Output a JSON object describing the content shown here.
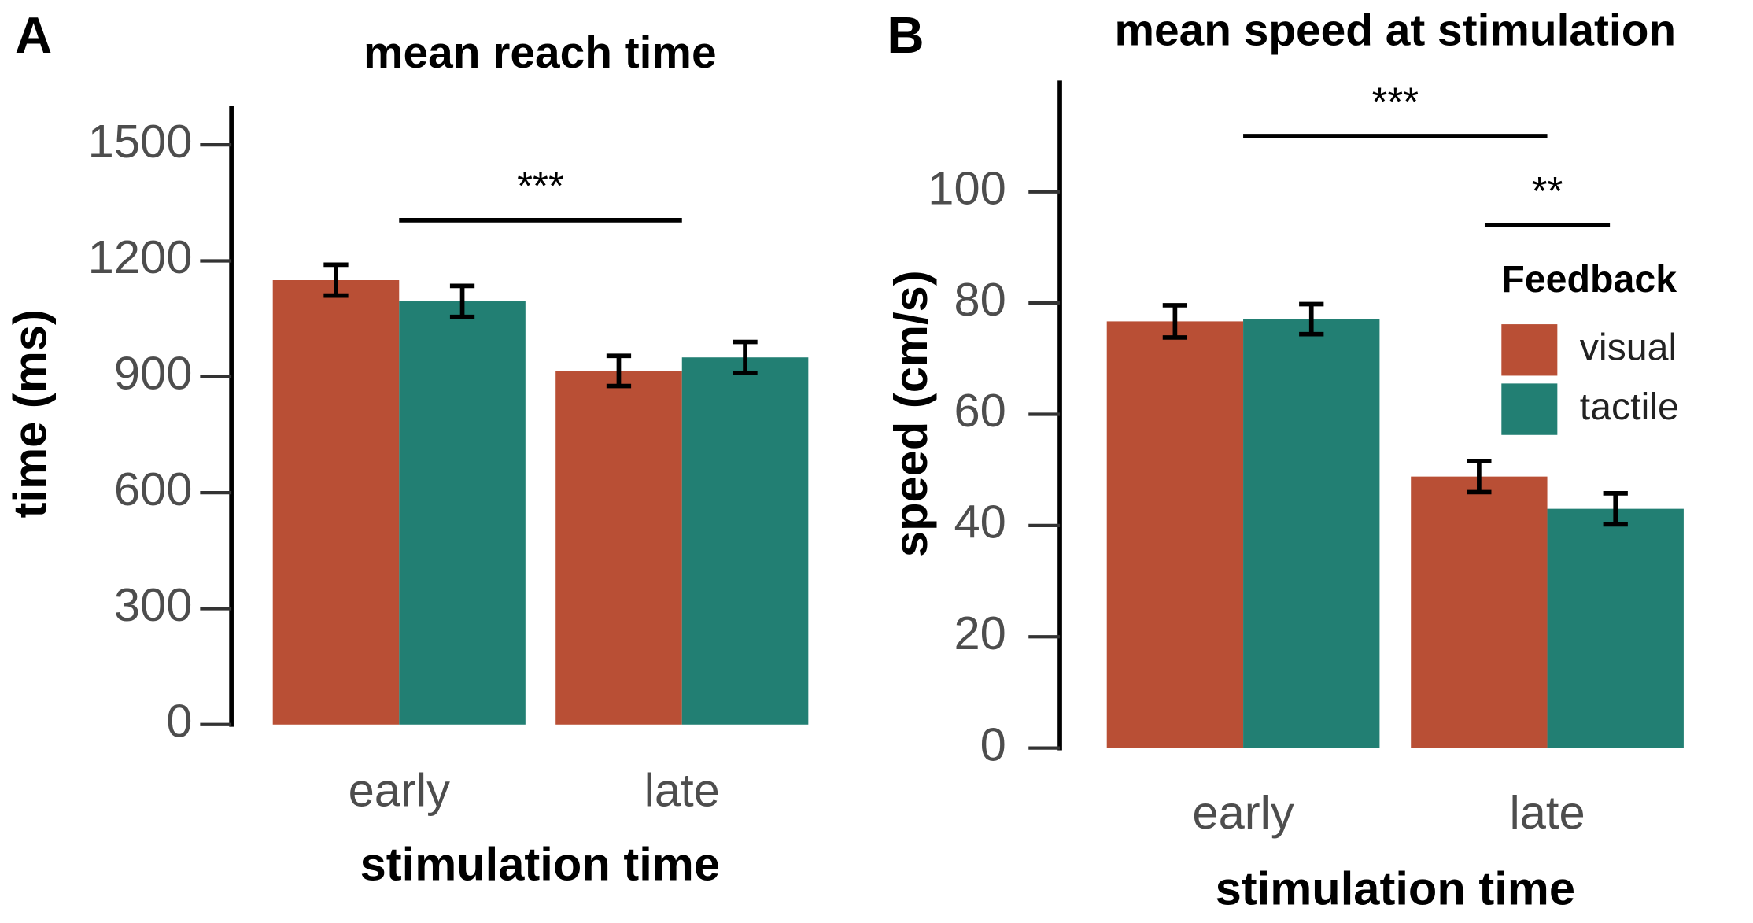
{
  "chart_data": [
    {
      "type": "bar",
      "panel": "A",
      "title": "mean reach time",
      "xlabel": "stimulation time",
      "ylabel": "time (ms)",
      "categories": [
        "early",
        "late"
      ],
      "series": [
        {
          "name": "visual",
          "color": "#b94f35",
          "values": [
            1150,
            915
          ],
          "errors": [
            40,
            39
          ]
        },
        {
          "name": "tactile",
          "color": "#227f73",
          "values": [
            1095,
            950
          ],
          "errors": [
            40,
            40
          ]
        }
      ],
      "ylim": [
        0,
        1600
      ],
      "yticks": [
        0,
        300,
        600,
        900,
        1200,
        1500
      ],
      "annotations": [
        {
          "text": "***",
          "y": 1305
        }
      ]
    },
    {
      "type": "bar",
      "panel": "B",
      "title": "mean speed at stimulation",
      "xlabel": "stimulation time",
      "ylabel": "speed (cm/s)",
      "categories": [
        "early",
        "late"
      ],
      "series": [
        {
          "name": "visual",
          "color": "#b94f35",
          "values": [
            76.7,
            48.8
          ],
          "errors": [
            2.9,
            2.8
          ]
        },
        {
          "name": "tactile",
          "color": "#227f73",
          "values": [
            77.1,
            43
          ],
          "errors": [
            2.7,
            2.8
          ]
        }
      ],
      "ylim": [
        0,
        120
      ],
      "yticks": [
        0,
        20,
        40,
        60,
        80,
        100
      ],
      "legend": "right",
      "legend_title": "Feedback",
      "annotations": [
        {
          "text": "***",
          "y": 110
        },
        {
          "text": "**",
          "y": 94
        }
      ]
    }
  ]
}
